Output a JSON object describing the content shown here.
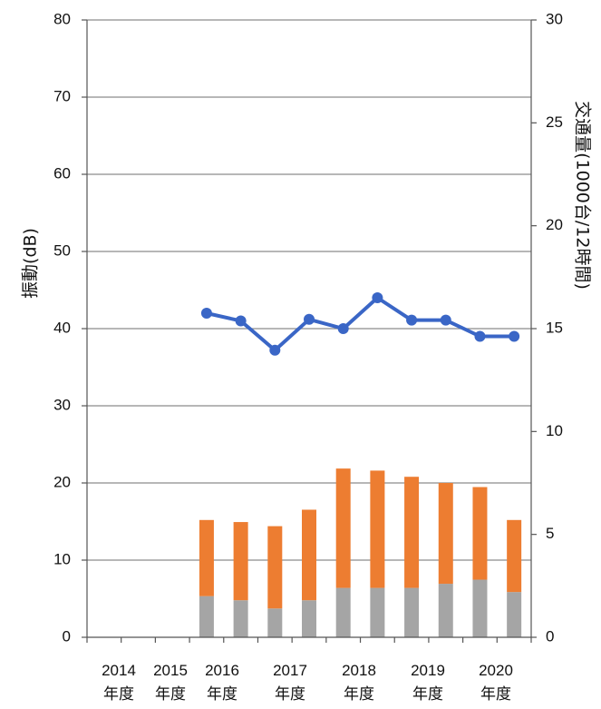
{
  "chart_data": {
    "type": "bar+line",
    "x_labels": [
      {
        "year": "2014",
        "suffix": "年度"
      },
      {
        "year": "2015",
        "suffix": "年度"
      },
      {
        "year": "2016",
        "suffix": "年度"
      },
      {
        "year": "2017",
        "suffix": "年度"
      },
      {
        "year": "2018",
        "suffix": "年度"
      },
      {
        "year": "2019",
        "suffix": "年度"
      },
      {
        "year": "2020",
        "suffix": "年度"
      }
    ],
    "left_axis": {
      "label": "振動(dB)",
      "min": 0,
      "max": 80,
      "ticks": [
        0,
        10,
        20,
        30,
        40,
        50,
        60,
        70,
        80
      ]
    },
    "right_axis": {
      "label": "交通量(1000台/12時間)",
      "min": 0,
      "max": 30,
      "ticks": [
        0,
        5,
        10,
        15,
        20,
        25,
        30
      ]
    },
    "grid": true,
    "slots": 13,
    "points": [
      {
        "slot": 3,
        "vibration": 42,
        "bar_gray": 2.0,
        "bar_orange": 3.7
      },
      {
        "slot": 4,
        "vibration": 41,
        "bar_gray": 1.8,
        "bar_orange": 3.8
      },
      {
        "slot": 5,
        "vibration": 37.2,
        "bar_gray": 1.4,
        "bar_orange": 4.0
      },
      {
        "slot": 6,
        "vibration": 41.2,
        "bar_gray": 1.8,
        "bar_orange": 4.4
      },
      {
        "slot": 7,
        "vibration": 40,
        "bar_gray": 2.4,
        "bar_orange": 5.8
      },
      {
        "slot": 8,
        "vibration": 44,
        "bar_gray": 2.4,
        "bar_orange": 5.7
      },
      {
        "slot": 9,
        "vibration": 41.1,
        "bar_gray": 2.4,
        "bar_orange": 5.4
      },
      {
        "slot": 10,
        "vibration": 41.1,
        "bar_gray": 2.6,
        "bar_orange": 4.9
      },
      {
        "slot": 11,
        "vibration": 39,
        "bar_gray": 2.8,
        "bar_orange": 4.5
      },
      {
        "slot": 12,
        "vibration": 39,
        "bar_gray": 2.2,
        "bar_orange": 3.5
      }
    ],
    "colors": {
      "line": "#3a66c6",
      "bar_gray": "#a5a5a5",
      "bar_orange": "#ed7d31",
      "grid": "#8c8c8c",
      "axis": "#555555"
    }
  }
}
